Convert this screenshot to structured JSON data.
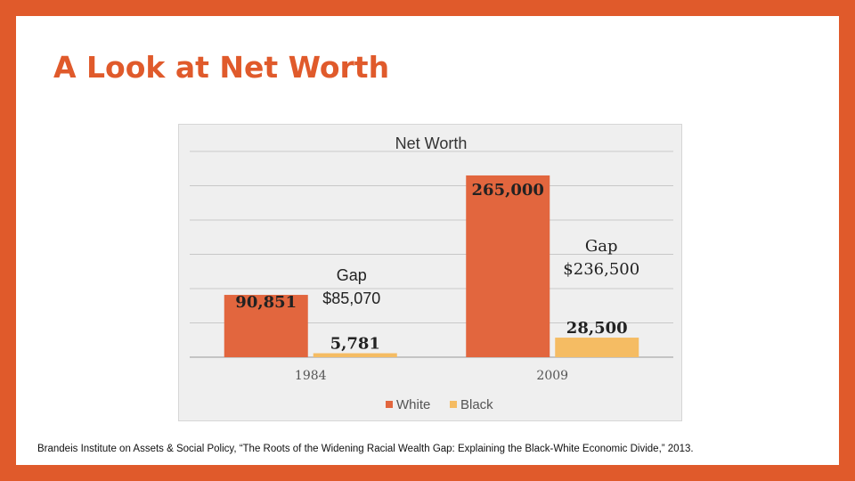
{
  "slide": {
    "title": "A Look at Net Worth",
    "source": "Brandeis Institute on Assets & Social Policy, “The Roots of the Widening Racial Wealth Gap: Explaining the Black-White Economic Divide,” 2013."
  },
  "colors": {
    "background": "#e05a2b",
    "white_series": "#e2663e",
    "black_series": "#f5bc63",
    "title": "#e05a2b"
  },
  "chart_data": {
    "type": "bar",
    "title": "Net Worth",
    "categories": [
      "1984",
      "2009"
    ],
    "series": [
      {
        "name": "White",
        "values": [
          90851,
          265000
        ],
        "labels": [
          "90,851",
          "265,000"
        ]
      },
      {
        "name": "Black",
        "values": [
          5781,
          28500
        ],
        "labels": [
          "5,781",
          "28,500"
        ]
      }
    ],
    "annotations": [
      {
        "category": "1984",
        "lines": [
          "Gap",
          "$85,070"
        ]
      },
      {
        "category": "2009",
        "lines": [
          "Gap",
          "$236,500"
        ]
      }
    ],
    "ylim": [
      0,
      300000
    ],
    "grid": true,
    "legend": "bottom"
  }
}
